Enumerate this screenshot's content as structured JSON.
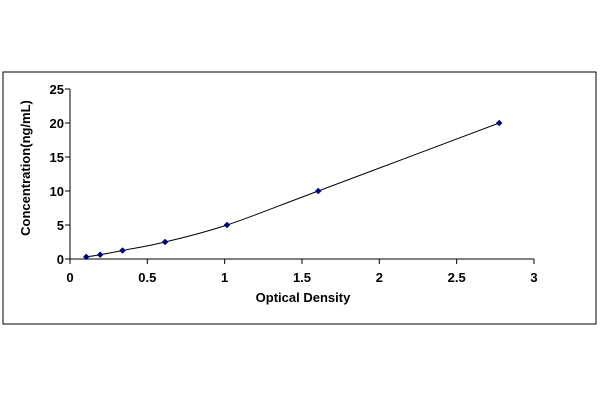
{
  "chart_data": {
    "type": "scatter",
    "title": "",
    "xlabel": "Optical Density",
    "ylabel": "Concentration(ng/mL)",
    "xlim": [
      0,
      3
    ],
    "ylim": [
      0,
      25
    ],
    "x_ticks": [
      "0",
      "0.5",
      "1",
      "1.5",
      "2",
      "2.5",
      "3"
    ],
    "y_ticks": [
      "0",
      "5",
      "10",
      "15",
      "20",
      "25"
    ],
    "grid": false,
    "legend": "none",
    "series": [
      {
        "x": [
          0.105,
          0.195,
          0.34,
          0.615,
          1.015,
          1.605,
          2.775
        ],
        "y": [
          0.31,
          0.63,
          1.25,
          2.5,
          5,
          10,
          20
        ],
        "line": "smooth",
        "marker": "diamond",
        "color": "#00007f"
      }
    ]
  }
}
